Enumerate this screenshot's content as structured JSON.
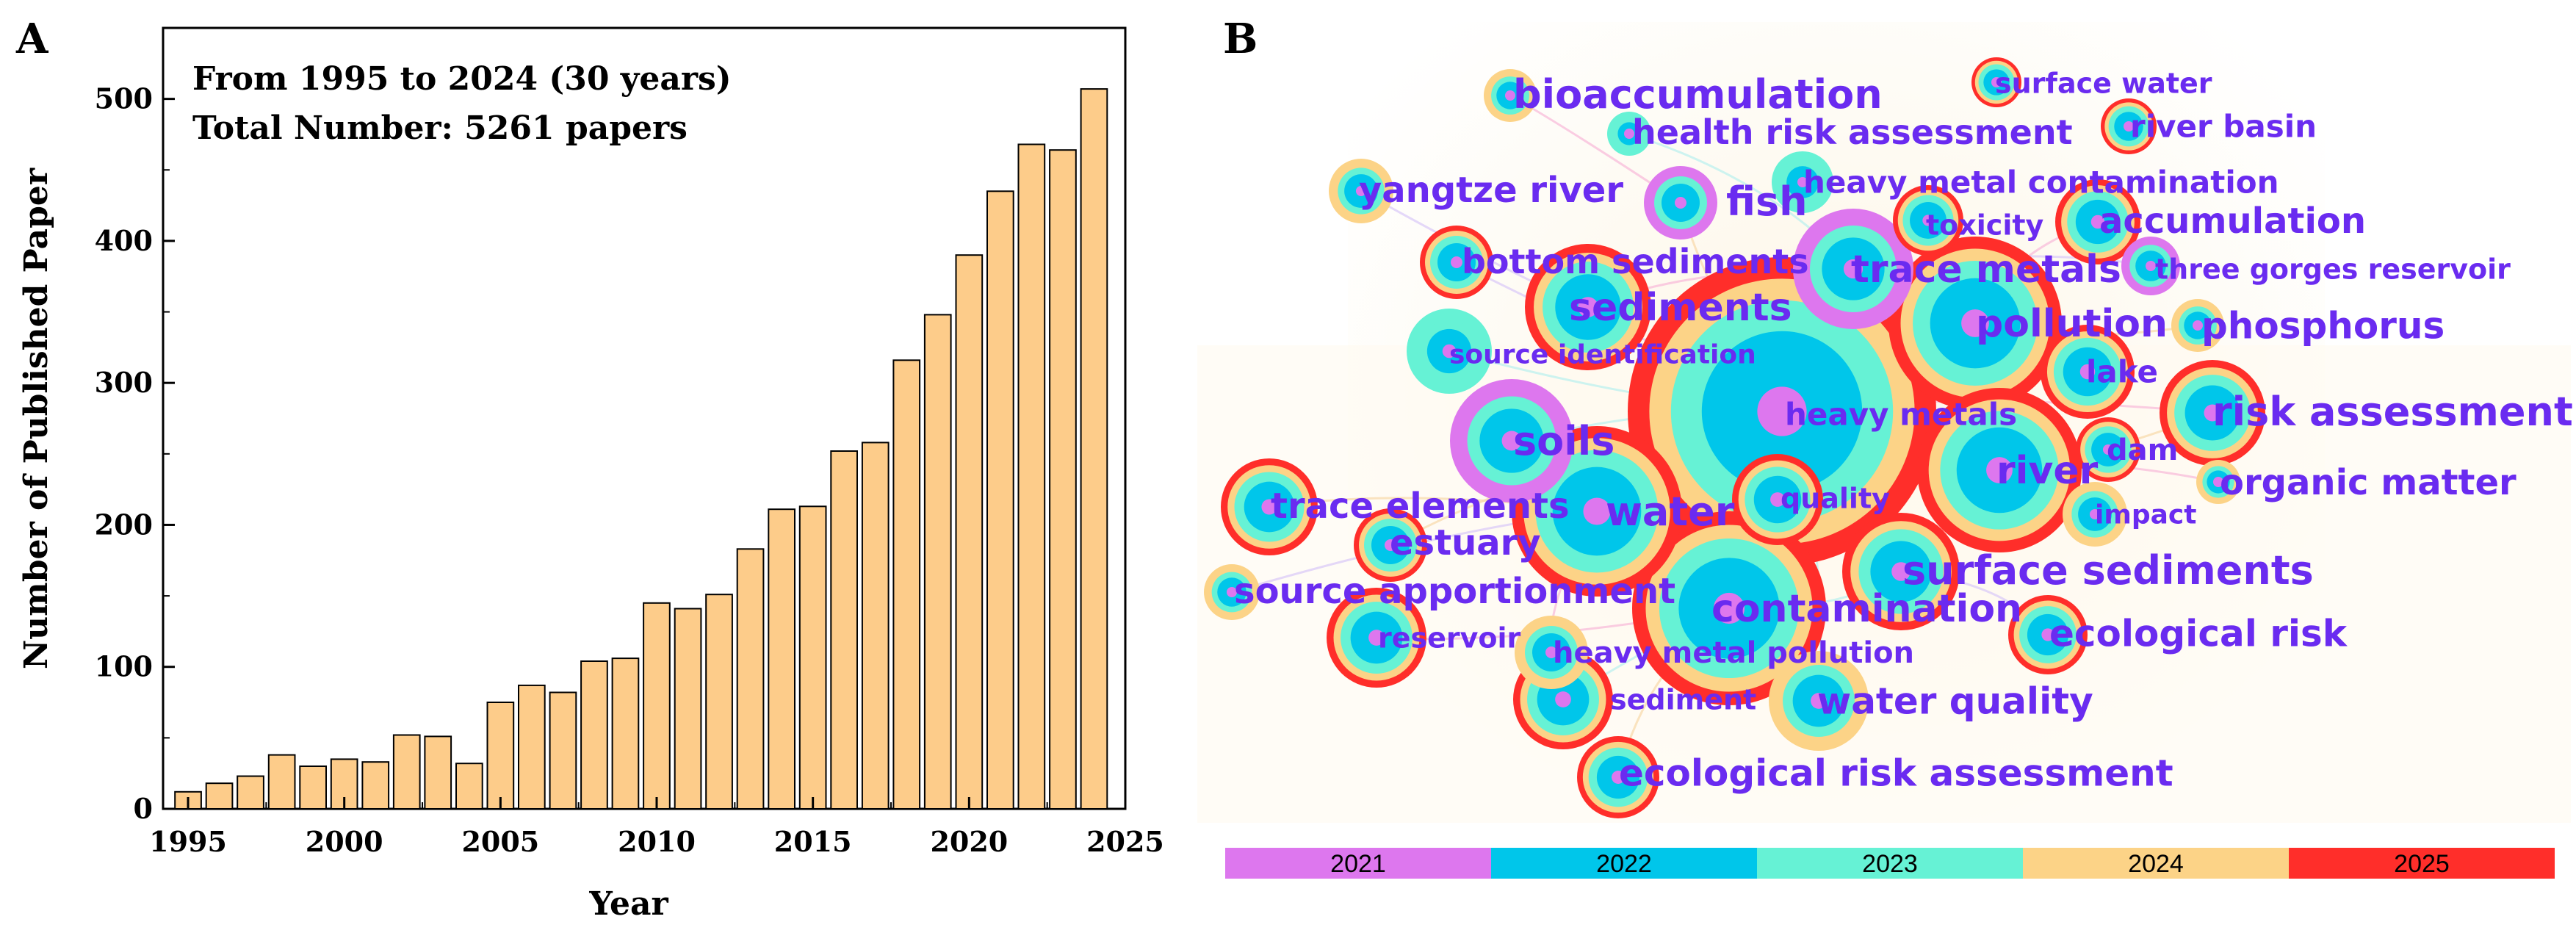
{
  "chart_data": [
    {
      "type": "bar",
      "panel": "A",
      "title": "",
      "annotations": [
        "From 1995 to 2024 (30 years)",
        "Total Number: 5261 papers"
      ],
      "xlabel": "Year",
      "ylabel": "Number of Published Paper",
      "xlim": [
        1994.2,
        2025
      ],
      "ylim": [
        0,
        550
      ],
      "xticks": [
        1995,
        2000,
        2005,
        2010,
        2015,
        2020,
        2025
      ],
      "yticks": [
        0,
        100,
        200,
        300,
        400,
        500
      ],
      "bar_color": "#fdcc8a",
      "categories": [
        1995,
        1996,
        1997,
        1998,
        1999,
        2000,
        2001,
        2002,
        2003,
        2004,
        2005,
        2006,
        2007,
        2008,
        2009,
        2010,
        2011,
        2012,
        2013,
        2014,
        2015,
        2016,
        2017,
        2018,
        2019,
        2020,
        2021,
        2022,
        2023,
        2024
      ],
      "values": [
        12,
        18,
        23,
        38,
        30,
        35,
        33,
        52,
        51,
        32,
        75,
        87,
        82,
        104,
        106,
        145,
        141,
        151,
        183,
        211,
        213,
        252,
        258,
        316,
        348,
        390,
        435,
        468,
        464,
        507
      ]
    },
    {
      "type": "network",
      "panel": "B",
      "description_colors": {
        "2021": "#dd77ee",
        "2022": "#00c6ea",
        "2023": "#66f2d5",
        "2024": "#fcd387",
        "2025": "#ff2e2a"
      },
      "legend": [
        {
          "label": "2021",
          "color": "#dd77ee"
        },
        {
          "label": "2022",
          "color": "#00c6ea"
        },
        {
          "label": "2023",
          "color": "#66f2d5"
        },
        {
          "label": "2024",
          "color": "#fcd387"
        },
        {
          "label": "2025",
          "color": "#ff2e2a"
        }
      ],
      "keywords": [
        "bioaccumulation",
        "health risk assessment",
        "surface water",
        "river basin",
        "yangtze river",
        "fish",
        "heavy metal contamination",
        "toxicity",
        "accumulation",
        "bottom sediments",
        "trace metals",
        "three gorges reservoir",
        "sediments",
        "pollution",
        "phosphorus",
        "source identification",
        "lake",
        "heavy metals",
        "risk assessment",
        "soils",
        "dam",
        "river",
        "organic matter",
        "trace elements",
        "water",
        "quality",
        "impact",
        "estuary",
        "surface sediments",
        "source apportionment",
        "contamination",
        "reservoir",
        "ecological risk",
        "heavy metal pollution",
        "sediment",
        "water quality",
        "ecological risk assessment"
      ]
    }
  ]
}
